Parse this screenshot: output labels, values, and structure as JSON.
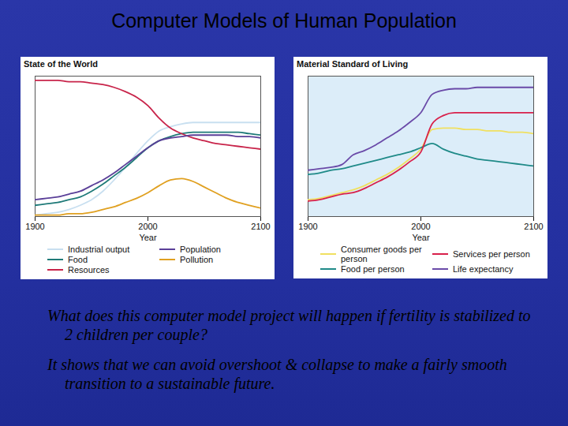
{
  "title": "Computer Models of Human Population",
  "chart_data": [
    {
      "type": "line",
      "title": "State of the World",
      "xlabel": "Year",
      "x": [
        1900,
        1910,
        1920,
        1930,
        1940,
        1950,
        1960,
        1970,
        1980,
        1990,
        2000,
        2010,
        2020,
        2030,
        2040,
        2050,
        2060,
        2070,
        2080,
        2090,
        2100
      ],
      "xlim": [
        1900,
        2100
      ],
      "xticks": [
        1900,
        2000,
        2100
      ],
      "ylim": [
        0,
        100
      ],
      "tick_labels": "x",
      "legend": "bottom",
      "series": [
        {
          "name": "Industrial output",
          "color": "#c8dff0",
          "values": [
            1,
            2,
            3,
            5,
            8,
            12,
            18,
            26,
            35,
            45,
            54,
            61,
            64,
            66,
            67,
            67,
            67,
            67,
            67,
            67,
            67
          ]
        },
        {
          "name": "Food",
          "color": "#1f7a78",
          "values": [
            8,
            9,
            10,
            12,
            14,
            18,
            23,
            29,
            35,
            42,
            49,
            54,
            57,
            59,
            60,
            60,
            60,
            60,
            60,
            59,
            58
          ]
        },
        {
          "name": "Resources",
          "color": "#c8244a",
          "values": [
            97,
            97,
            97,
            96,
            96,
            95,
            94,
            92,
            89,
            85,
            79,
            70,
            63,
            59,
            56,
            54,
            52,
            51,
            50,
            49,
            48
          ]
        },
        {
          "name": "Population",
          "color": "#5a3f98",
          "values": [
            12,
            13,
            14,
            16,
            18,
            22,
            26,
            31,
            37,
            43,
            49,
            54,
            56,
            57,
            58,
            58,
            58,
            58,
            57,
            57,
            56
          ]
        },
        {
          "name": "Pollution",
          "color": "#e0a020",
          "values": [
            1,
            1,
            1,
            2,
            2,
            3,
            5,
            7,
            10,
            13,
            17,
            22,
            26,
            27,
            25,
            21,
            17,
            13,
            10,
            8,
            6
          ]
        }
      ]
    },
    {
      "type": "line",
      "title": "Material Standard of Living",
      "xlabel": "Year",
      "x": [
        1900,
        1910,
        1920,
        1930,
        1940,
        1950,
        1960,
        1970,
        1980,
        1990,
        2000,
        2010,
        2020,
        2030,
        2040,
        2050,
        2060,
        2070,
        2080,
        2090,
        2100
      ],
      "xlim": [
        1900,
        2100
      ],
      "xticks": [
        1900,
        2000,
        2100
      ],
      "ylim": [
        0,
        100
      ],
      "tick_labels": "x",
      "legend": "bottom",
      "series": [
        {
          "name": "Consumer goods per person",
          "color": "#f0e060",
          "values": [
            12,
            13,
            15,
            17,
            19,
            22,
            26,
            30,
            35,
            41,
            48,
            62,
            63,
            63,
            62,
            62,
            61,
            61,
            60,
            60,
            59
          ]
        },
        {
          "name": "Food per person",
          "color": "#1f8a88",
          "values": [
            30,
            31,
            33,
            34,
            36,
            38,
            40,
            42,
            44,
            46,
            49,
            52,
            48,
            45,
            43,
            41,
            40,
            39,
            38,
            37,
            36
          ]
        },
        {
          "name": "Services per person",
          "color": "#d8204a",
          "values": [
            11,
            12,
            14,
            16,
            17,
            20,
            24,
            28,
            33,
            39,
            46,
            66,
            72,
            74,
            74,
            74,
            74,
            74,
            74,
            74,
            74
          ]
        },
        {
          "name": "Life expectancy",
          "color": "#6a4aa8",
          "values": [
            33,
            34,
            35,
            37,
            44,
            47,
            51,
            56,
            61,
            67,
            74,
            87,
            90,
            91,
            91,
            92,
            92,
            92,
            92,
            92,
            92
          ]
        }
      ]
    }
  ],
  "caption": {
    "question": "What does this computer model project will happen if fertility is stabilized to 2 children per couple?",
    "answer": "It shows that we can avoid overshoot & collapse to make a fairly smooth transition to a sustainable future."
  }
}
